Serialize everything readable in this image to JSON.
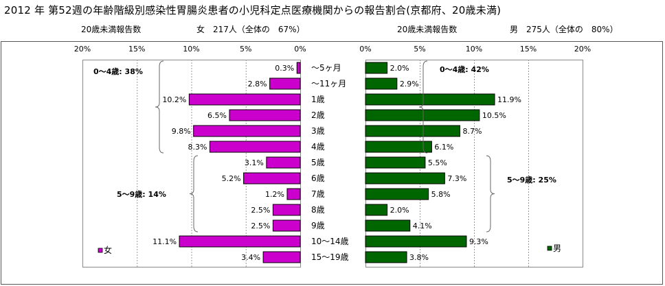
{
  "title": "2012 年 第52週の年齢階級別感染性胃腸炎患者の小児科定点医療機関からの報告割合(京都府、20歳未満)",
  "female_caption": {
    "label": "20歳未満報告数",
    "info": "女　217人（全体の　67%）"
  },
  "male_caption": {
    "label": "20歳未満報告数",
    "info": "男　275人（全体の　80%）"
  },
  "chart_data": [
    {
      "type": "bar",
      "orientation": "horizontal",
      "direction": "right-to-left",
      "categories": [
        "～5ヶ月",
        "～11ヶ月",
        "1歳",
        "2歳",
        "3歳",
        "4歳",
        "5歳",
        "6歳",
        "7歳",
        "8歳",
        "9歳",
        "10～14歳",
        "15～19歳"
      ],
      "series": [
        {
          "name": "女",
          "values": [
            0.3,
            2.8,
            10.2,
            6.5,
            9.8,
            8.3,
            3.1,
            5.2,
            1.2,
            2.5,
            2.5,
            11.1,
            3.4
          ]
        }
      ],
      "data_labels": [
        "0.3%",
        "2.8%",
        "10.2%",
        "6.5%",
        "9.8%",
        "8.3%",
        "3.1%",
        "5.2%",
        "1.2%",
        "2.5%",
        "2.5%",
        "11.1%",
        "3.4%"
      ],
      "xlim": [
        0,
        20
      ],
      "xticks": [
        "20%",
        "15%",
        "10%",
        "5%",
        "0%"
      ],
      "grid": true,
      "legend": "bottom-left",
      "color": "#cc00cc",
      "annotations": [
        {
          "text": "0～4歳: 38%",
          "from": 0,
          "to": 5
        },
        {
          "text": "5～9歳: 14%",
          "from": 6,
          "to": 10
        }
      ]
    },
    {
      "type": "bar",
      "orientation": "horizontal",
      "direction": "left-to-right",
      "categories": [
        "～5ヶ月",
        "～11ヶ月",
        "1歳",
        "2歳",
        "3歳",
        "4歳",
        "5歳",
        "6歳",
        "7歳",
        "8歳",
        "9歳",
        "10～14歳",
        "15～19歳"
      ],
      "series": [
        {
          "name": "男",
          "values": [
            2.0,
            2.9,
            11.9,
            10.5,
            8.7,
            6.1,
            5.5,
            7.3,
            5.8,
            2.0,
            4.1,
            9.3,
            3.8
          ]
        }
      ],
      "data_labels": [
        "2.0%",
        "2.9%",
        "11.9%",
        "10.5%",
        "8.7%",
        "6.1%",
        "5.5%",
        "7.3%",
        "5.8%",
        "2.0%",
        "4.1%",
        "9.3%",
        "3.8%"
      ],
      "xlim": [
        0,
        20
      ],
      "xticks": [
        "0%",
        "5%",
        "10%",
        "15%",
        "20%"
      ],
      "grid": true,
      "legend": "bottom-right",
      "color": "#006600",
      "annotations": [
        {
          "text": "0～4歳: 42%",
          "from": 0,
          "to": 5
        },
        {
          "text": "5～9歳: 25%",
          "from": 6,
          "to": 10
        }
      ]
    }
  ]
}
